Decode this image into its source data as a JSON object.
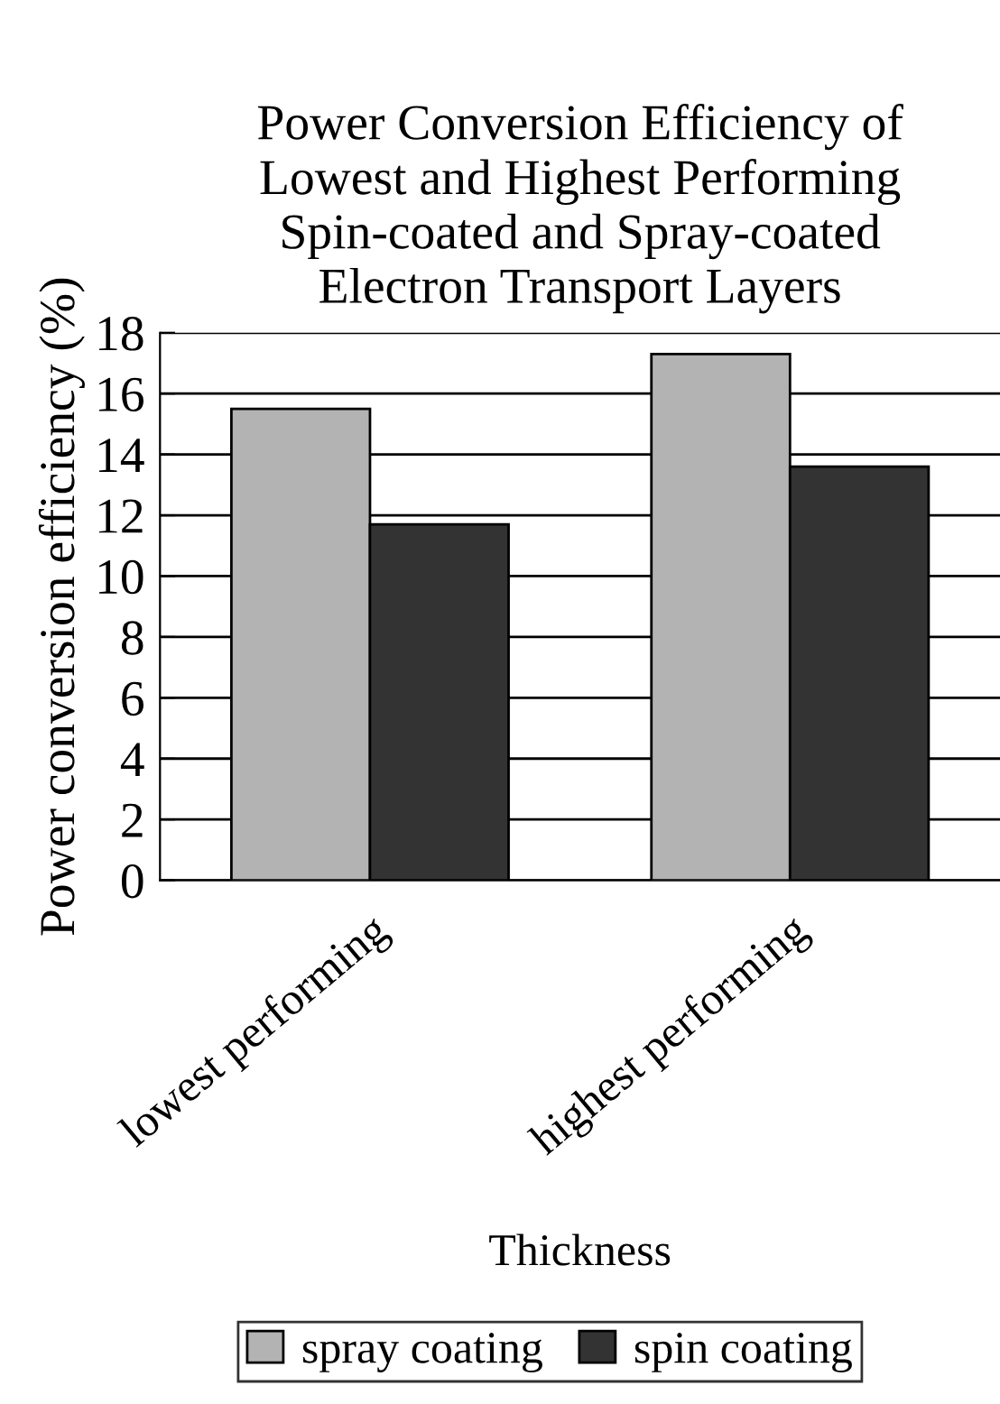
{
  "chart_data": {
    "type": "bar",
    "title": "Power Conversion Efficiency of\nLowest and Highest Performing\nSpin-coated and Spray-coated\nElectron Transport Layers",
    "xlabel": "Thickness",
    "ylabel": "Power conversion efficiency (%)",
    "categories": [
      "lowest performing",
      "highest performing"
    ],
    "series": [
      {
        "name": "spray coating",
        "color": "#b3b3b3",
        "values": [
          15.5,
          17.3
        ]
      },
      {
        "name": "spin coating",
        "color": "#333333",
        "values": [
          11.7,
          13.6
        ]
      }
    ],
    "ylim": [
      0,
      18
    ],
    "yticks": [
      0,
      2,
      4,
      6,
      8,
      10,
      12,
      14,
      16,
      18
    ],
    "grid": "y",
    "legend": "bottom"
  }
}
